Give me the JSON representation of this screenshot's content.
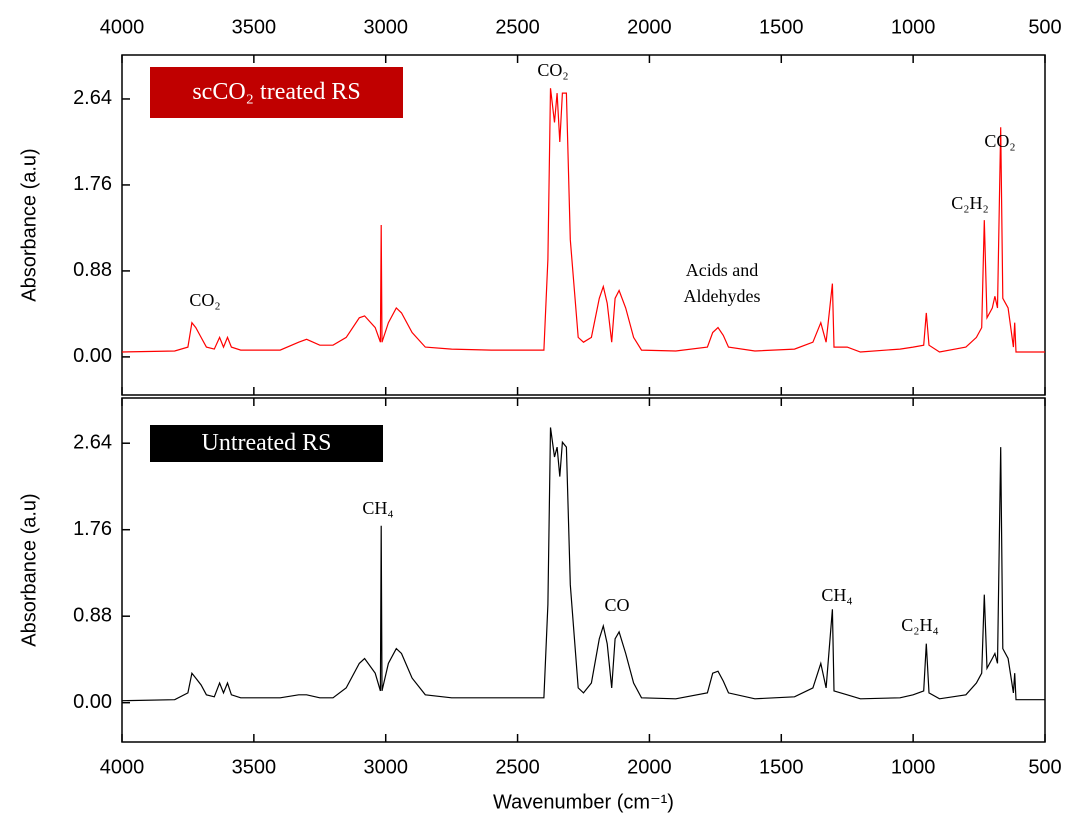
{
  "chart_data": [
    {
      "type": "line",
      "title": "scCO₂ treated RS",
      "title_color": "#c00000",
      "color": "#ff0000",
      "ylabel": "Absorbance (a.u)",
      "xaxis_position": "top",
      "xlim": [
        4000,
        500
      ],
      "xticks": [
        4000,
        3500,
        3000,
        2500,
        2000,
        1500,
        1000,
        500
      ],
      "ylim": [
        -0.39,
        3.09
      ],
      "yticks": [
        {
          "value": 0,
          "label": "0.00"
        },
        0.88,
        1.76,
        2.64
      ],
      "annotations": [
        "CO₂",
        "CO₂",
        "Acids and",
        "Aldehydes",
        "C₂H₂",
        "CO₂"
      ],
      "x": [
        4000,
        3800,
        3750,
        3735,
        3720,
        3700,
        3680,
        3650,
        3630,
        3615,
        3600,
        3585,
        3550,
        3400,
        3330,
        3300,
        3250,
        3200,
        3150,
        3100,
        3080,
        3040,
        3020,
        3017,
        3014,
        2990,
        2960,
        2940,
        2900,
        2850,
        2750,
        2600,
        2400,
        2385,
        2375,
        2360,
        2350,
        2340,
        2330,
        2315,
        2300,
        2270,
        2250,
        2220,
        2190,
        2175,
        2160,
        2143,
        2130,
        2115,
        2090,
        2060,
        2030,
        1900,
        1780,
        1760,
        1740,
        1720,
        1700,
        1600,
        1450,
        1380,
        1350,
        1330,
        1306,
        1300,
        1250,
        1200,
        1050,
        1000,
        960,
        950,
        940,
        900,
        800,
        760,
        740,
        730,
        720,
        700,
        690,
        680,
        668,
        660,
        640,
        620,
        615,
        610,
        500
      ],
      "values": [
        0.05,
        0.06,
        0.1,
        0.35,
        0.3,
        0.2,
        0.1,
        0.08,
        0.2,
        0.1,
        0.2,
        0.1,
        0.07,
        0.07,
        0.15,
        0.18,
        0.12,
        0.12,
        0.2,
        0.4,
        0.42,
        0.3,
        0.15,
        1.35,
        0.15,
        0.35,
        0.5,
        0.45,
        0.25,
        0.1,
        0.08,
        0.07,
        0.07,
        1.0,
        2.75,
        2.4,
        2.7,
        2.2,
        2.7,
        2.7,
        1.2,
        0.2,
        0.15,
        0.2,
        0.6,
        0.72,
        0.55,
        0.15,
        0.6,
        0.68,
        0.5,
        0.2,
        0.07,
        0.06,
        0.1,
        0.25,
        0.3,
        0.22,
        0.1,
        0.06,
        0.08,
        0.15,
        0.35,
        0.15,
        0.75,
        0.1,
        0.1,
        0.05,
        0.08,
        0.1,
        0.12,
        0.45,
        0.12,
        0.05,
        0.1,
        0.2,
        0.3,
        1.4,
        0.4,
        0.5,
        0.62,
        0.5,
        2.35,
        0.6,
        0.5,
        0.1,
        0.35,
        0.05,
        0.05
      ]
    },
    {
      "type": "line",
      "title": "Untreated RS",
      "title_color": "#000000",
      "color": "#000000",
      "ylabel": "Absorbance (a.u)",
      "xlabel": "Wavenumber (cm⁻¹)",
      "xaxis_position": "bottom",
      "xlim": [
        4000,
        500
      ],
      "xticks": [
        4000,
        3500,
        3000,
        2500,
        2000,
        1500,
        1000,
        500
      ],
      "ylim": [
        -0.4,
        3.1
      ],
      "yticks": [
        {
          "value": 0,
          "label": "0.00"
        },
        0.88,
        1.76,
        2.64
      ],
      "annotations": [
        "CH₄",
        "CO",
        "CH₄",
        "C₂H₄"
      ],
      "x": [
        4000,
        3800,
        3750,
        3735,
        3720,
        3700,
        3680,
        3650,
        3630,
        3615,
        3600,
        3585,
        3550,
        3400,
        3330,
        3300,
        3250,
        3200,
        3150,
        3100,
        3080,
        3040,
        3020,
        3017,
        3014,
        2990,
        2960,
        2940,
        2900,
        2850,
        2750,
        2600,
        2400,
        2385,
        2375,
        2360,
        2350,
        2340,
        2330,
        2315,
        2300,
        2270,
        2250,
        2220,
        2190,
        2175,
        2160,
        2143,
        2130,
        2115,
        2090,
        2060,
        2030,
        1900,
        1780,
        1760,
        1740,
        1720,
        1700,
        1600,
        1450,
        1380,
        1350,
        1330,
        1306,
        1300,
        1250,
        1200,
        1050,
        1000,
        960,
        950,
        940,
        900,
        800,
        760,
        740,
        730,
        720,
        700,
        690,
        680,
        668,
        660,
        640,
        620,
        615,
        610,
        500
      ],
      "values": [
        0.02,
        0.03,
        0.1,
        0.3,
        0.25,
        0.18,
        0.08,
        0.06,
        0.2,
        0.1,
        0.2,
        0.08,
        0.05,
        0.05,
        0.08,
        0.08,
        0.05,
        0.05,
        0.15,
        0.4,
        0.45,
        0.3,
        0.12,
        1.8,
        0.12,
        0.4,
        0.55,
        0.5,
        0.25,
        0.08,
        0.05,
        0.05,
        0.05,
        1.0,
        2.8,
        2.5,
        2.6,
        2.3,
        2.65,
        2.6,
        1.2,
        0.15,
        0.1,
        0.2,
        0.65,
        0.78,
        0.6,
        0.15,
        0.65,
        0.72,
        0.5,
        0.2,
        0.05,
        0.04,
        0.1,
        0.3,
        0.32,
        0.22,
        0.1,
        0.04,
        0.06,
        0.15,
        0.4,
        0.15,
        0.95,
        0.12,
        0.08,
        0.04,
        0.05,
        0.08,
        0.12,
        0.6,
        0.1,
        0.04,
        0.08,
        0.2,
        0.3,
        1.1,
        0.35,
        0.45,
        0.5,
        0.4,
        2.6,
        0.55,
        0.45,
        0.1,
        0.3,
        0.03,
        0.03
      ]
    }
  ]
}
